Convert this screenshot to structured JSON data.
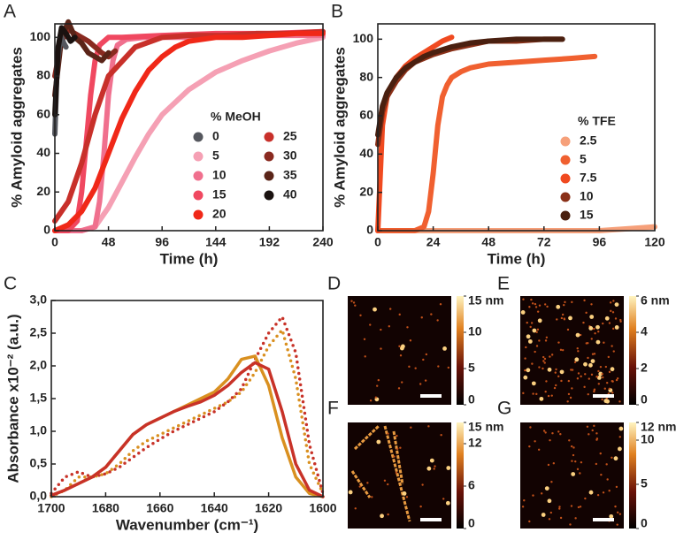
{
  "chart_data": [
    {
      "type": "line",
      "panel": "A",
      "xlabel": "Time (h)",
      "ylabel": "% Amyloid aggregates",
      "xlim": [
        0,
        240
      ],
      "xticks": [
        0,
        48,
        96,
        144,
        192,
        240
      ],
      "ylim": [
        0,
        107
      ],
      "yticks": [
        0,
        20,
        40,
        60,
        80,
        100
      ],
      "legend_title": "% MeOH",
      "legend": "lower right",
      "series": [
        {
          "name": "5",
          "color": "#f5a0b4",
          "x": [
            0,
            24,
            36,
            48,
            60,
            72,
            84,
            96,
            120,
            144,
            168,
            192,
            216,
            240
          ],
          "values": [
            0,
            0,
            2,
            12,
            25,
            38,
            50,
            60,
            73,
            82,
            88,
            93,
            97,
            100
          ]
        },
        {
          "name": "10",
          "color": "#f0708e",
          "x": [
            0,
            24,
            36,
            40,
            44,
            48,
            52,
            56,
            64,
            80,
            120,
            180,
            240
          ],
          "values": [
            0,
            0,
            2,
            15,
            40,
            70,
            88,
            96,
            99,
            100,
            100,
            101,
            101
          ]
        },
        {
          "name": "15",
          "color": "#f04860",
          "x": [
            0,
            12,
            20,
            24,
            28,
            32,
            36,
            40,
            48,
            60,
            96,
            144,
            192,
            240
          ],
          "values": [
            0,
            0,
            5,
            20,
            45,
            70,
            88,
            96,
            100,
            100,
            101,
            102,
            102,
            103
          ]
        },
        {
          "name": "25",
          "color": "#c8302a",
          "x": [
            0,
            12,
            24,
            36,
            48,
            72,
            96,
            120,
            150,
            180,
            210,
            240
          ],
          "values": [
            5,
            15,
            35,
            60,
            80,
            95,
            100,
            101,
            101,
            102,
            102,
            103
          ]
        },
        {
          "name": "20",
          "color": "#f02818",
          "x": [
            0,
            12,
            24,
            36,
            48,
            60,
            72,
            84,
            96,
            108,
            120,
            144,
            168,
            192,
            216,
            240
          ],
          "values": [
            0,
            3,
            10,
            22,
            40,
            58,
            72,
            83,
            90,
            95,
            98,
            100,
            100,
            101,
            102,
            102
          ]
        },
        {
          "name": "30",
          "color": "#8a2a20",
          "x": [
            0,
            6,
            12,
            18,
            24,
            30,
            36,
            42,
            48,
            54
          ],
          "values": [
            80,
            98,
            104,
            102,
            100,
            98,
            95,
            92,
            90,
            93
          ]
        },
        {
          "name": "35",
          "color": "#5a2418",
          "x": [
            0,
            6,
            12,
            18,
            24,
            30,
            36,
            42,
            48
          ],
          "values": [
            70,
            100,
            108,
            100,
            97,
            92,
            90,
            88,
            92
          ]
        },
        {
          "name": "0",
          "color": "#55575e",
          "x": [
            0,
            2,
            4,
            6,
            8,
            10
          ],
          "values": [
            50,
            85,
            95,
            100,
            97,
            95
          ]
        },
        {
          "name": "40",
          "color": "#1a1210",
          "x": [
            0,
            3,
            6,
            10,
            14,
            18
          ],
          "values": [
            60,
            95,
            105,
            102,
            98,
            100
          ]
        }
      ]
    },
    {
      "type": "line",
      "panel": "B",
      "xlabel": "Time (h)",
      "ylabel": "% Amyloid aggregates",
      "xlim": [
        0,
        120
      ],
      "xticks": [
        0,
        24,
        48,
        72,
        96,
        120
      ],
      "ylim": [
        0,
        108
      ],
      "yticks": [
        0,
        20,
        40,
        60,
        80,
        100
      ],
      "legend_title": "% TFE",
      "legend": "lower right",
      "series": [
        {
          "name": "2.5",
          "color": "#f6a07a",
          "x": [
            0,
            24,
            48,
            72,
            96,
            108,
            120
          ],
          "values": [
            0,
            0,
            0,
            0,
            0,
            1,
            2
          ]
        },
        {
          "name": "5",
          "color": "#f06030",
          "x": [
            0,
            16,
            20,
            22,
            24,
            26,
            28,
            30,
            32,
            36,
            40,
            48,
            60,
            72,
            84,
            94
          ],
          "values": [
            0,
            0,
            2,
            10,
            30,
            55,
            70,
            76,
            80,
            83,
            85,
            87,
            88,
            89,
            90,
            91
          ]
        },
        {
          "name": "7.5",
          "color": "#f04a20",
          "x": [
            0,
            2,
            4,
            8,
            12,
            16,
            20,
            24,
            28,
            32
          ],
          "values": [
            0,
            55,
            70,
            80,
            86,
            90,
            93,
            96,
            99,
            101
          ]
        },
        {
          "name": "10",
          "color": "#8a3018",
          "x": [
            0,
            2,
            4,
            8,
            12,
            16,
            20,
            24,
            32,
            40,
            48,
            60,
            72,
            80
          ],
          "values": [
            45,
            62,
            70,
            78,
            84,
            88,
            90,
            92,
            95,
            97,
            99,
            99,
            100,
            100
          ]
        },
        {
          "name": "15",
          "color": "#4a2010",
          "x": [
            0,
            2,
            4,
            8,
            12,
            16,
            20,
            24,
            32,
            40,
            48,
            60,
            72,
            80
          ],
          "values": [
            50,
            65,
            72,
            80,
            85,
            88,
            91,
            93,
            96,
            98,
            99,
            100,
            100,
            100
          ]
        }
      ]
    },
    {
      "type": "line",
      "panel": "C",
      "xlabel": "Wavenumber (cm⁻¹)",
      "ylabel": "Absorbance x10⁻² (a.u.)",
      "xlim": [
        1700,
        1600
      ],
      "xticks": [
        1700,
        1680,
        1660,
        1640,
        1620,
        1600
      ],
      "ylim": [
        0,
        3.0
      ],
      "yticks": [
        {
          "value": 0,
          "label": "0,0"
        },
        {
          "value": 0.5,
          "label": "0,5"
        },
        {
          "value": 1.0,
          "label": "1,0"
        },
        {
          "value": 1.5,
          "label": "1,5"
        },
        {
          "value": 2.0,
          "label": "2,0"
        },
        {
          "value": 2.5,
          "label": "2,5"
        },
        {
          "value": 3.0,
          "label": "3,0"
        }
      ],
      "x": [
        1700,
        1695,
        1690,
        1685,
        1680,
        1675,
        1670,
        1665,
        1660,
        1655,
        1650,
        1645,
        1640,
        1635,
        1630,
        1625,
        1620,
        1615,
        1610,
        1605,
        1600
      ],
      "series": [
        {
          "color": "#d99020",
          "style": "dotted",
          "values": [
            0,
            0.1,
            0.3,
            0.3,
            0.35,
            0.5,
            0.7,
            0.85,
            0.95,
            1.05,
            1.15,
            1.25,
            1.35,
            1.45,
            1.6,
            1.9,
            2.3,
            2.55,
            1.8,
            0.5,
            0.05
          ]
        },
        {
          "color": "#c83228",
          "style": "dotted",
          "values": [
            0.05,
            0.3,
            0.38,
            0.3,
            0.35,
            0.45,
            0.6,
            0.75,
            0.88,
            1.0,
            1.1,
            1.2,
            1.3,
            1.45,
            1.65,
            2.1,
            2.5,
            2.75,
            2.2,
            0.8,
            0.05
          ]
        },
        {
          "color": "#d99020",
          "style": "solid",
          "values": [
            0.02,
            0.1,
            0.2,
            0.3,
            0.45,
            0.7,
            0.95,
            1.1,
            1.2,
            1.3,
            1.4,
            1.5,
            1.6,
            1.8,
            2.1,
            2.15,
            1.7,
            0.9,
            0.3,
            0.05,
            0
          ]
        },
        {
          "color": "#c83228",
          "style": "solid",
          "values": [
            0.02,
            0.1,
            0.2,
            0.3,
            0.45,
            0.7,
            0.95,
            1.1,
            1.2,
            1.3,
            1.38,
            1.45,
            1.55,
            1.7,
            1.9,
            2.05,
            1.95,
            1.3,
            0.5,
            0.1,
            0
          ]
        }
      ]
    },
    {
      "type": "image",
      "panel": "D",
      "zlim": [
        0,
        15
      ],
      "zticks": [
        0,
        5,
        10,
        {
          "value": 15,
          "label": "15 nm"
        }
      ]
    },
    {
      "type": "image",
      "panel": "E",
      "zlim": [
        0,
        6
      ],
      "zticks": [
        0,
        2,
        4,
        {
          "value": 6,
          "label": "6 nm"
        }
      ]
    },
    {
      "type": "image",
      "panel": "F",
      "zlim": [
        0,
        15
      ],
      "zticks": [
        0,
        6,
        12,
        {
          "value": 15,
          "label": "15 nm"
        }
      ]
    },
    {
      "type": "image",
      "panel": "G",
      "zlim": [
        0,
        12
      ],
      "zticks": [
        0,
        5,
        10,
        {
          "value": 12,
          "label": "12 nm"
        }
      ]
    }
  ]
}
